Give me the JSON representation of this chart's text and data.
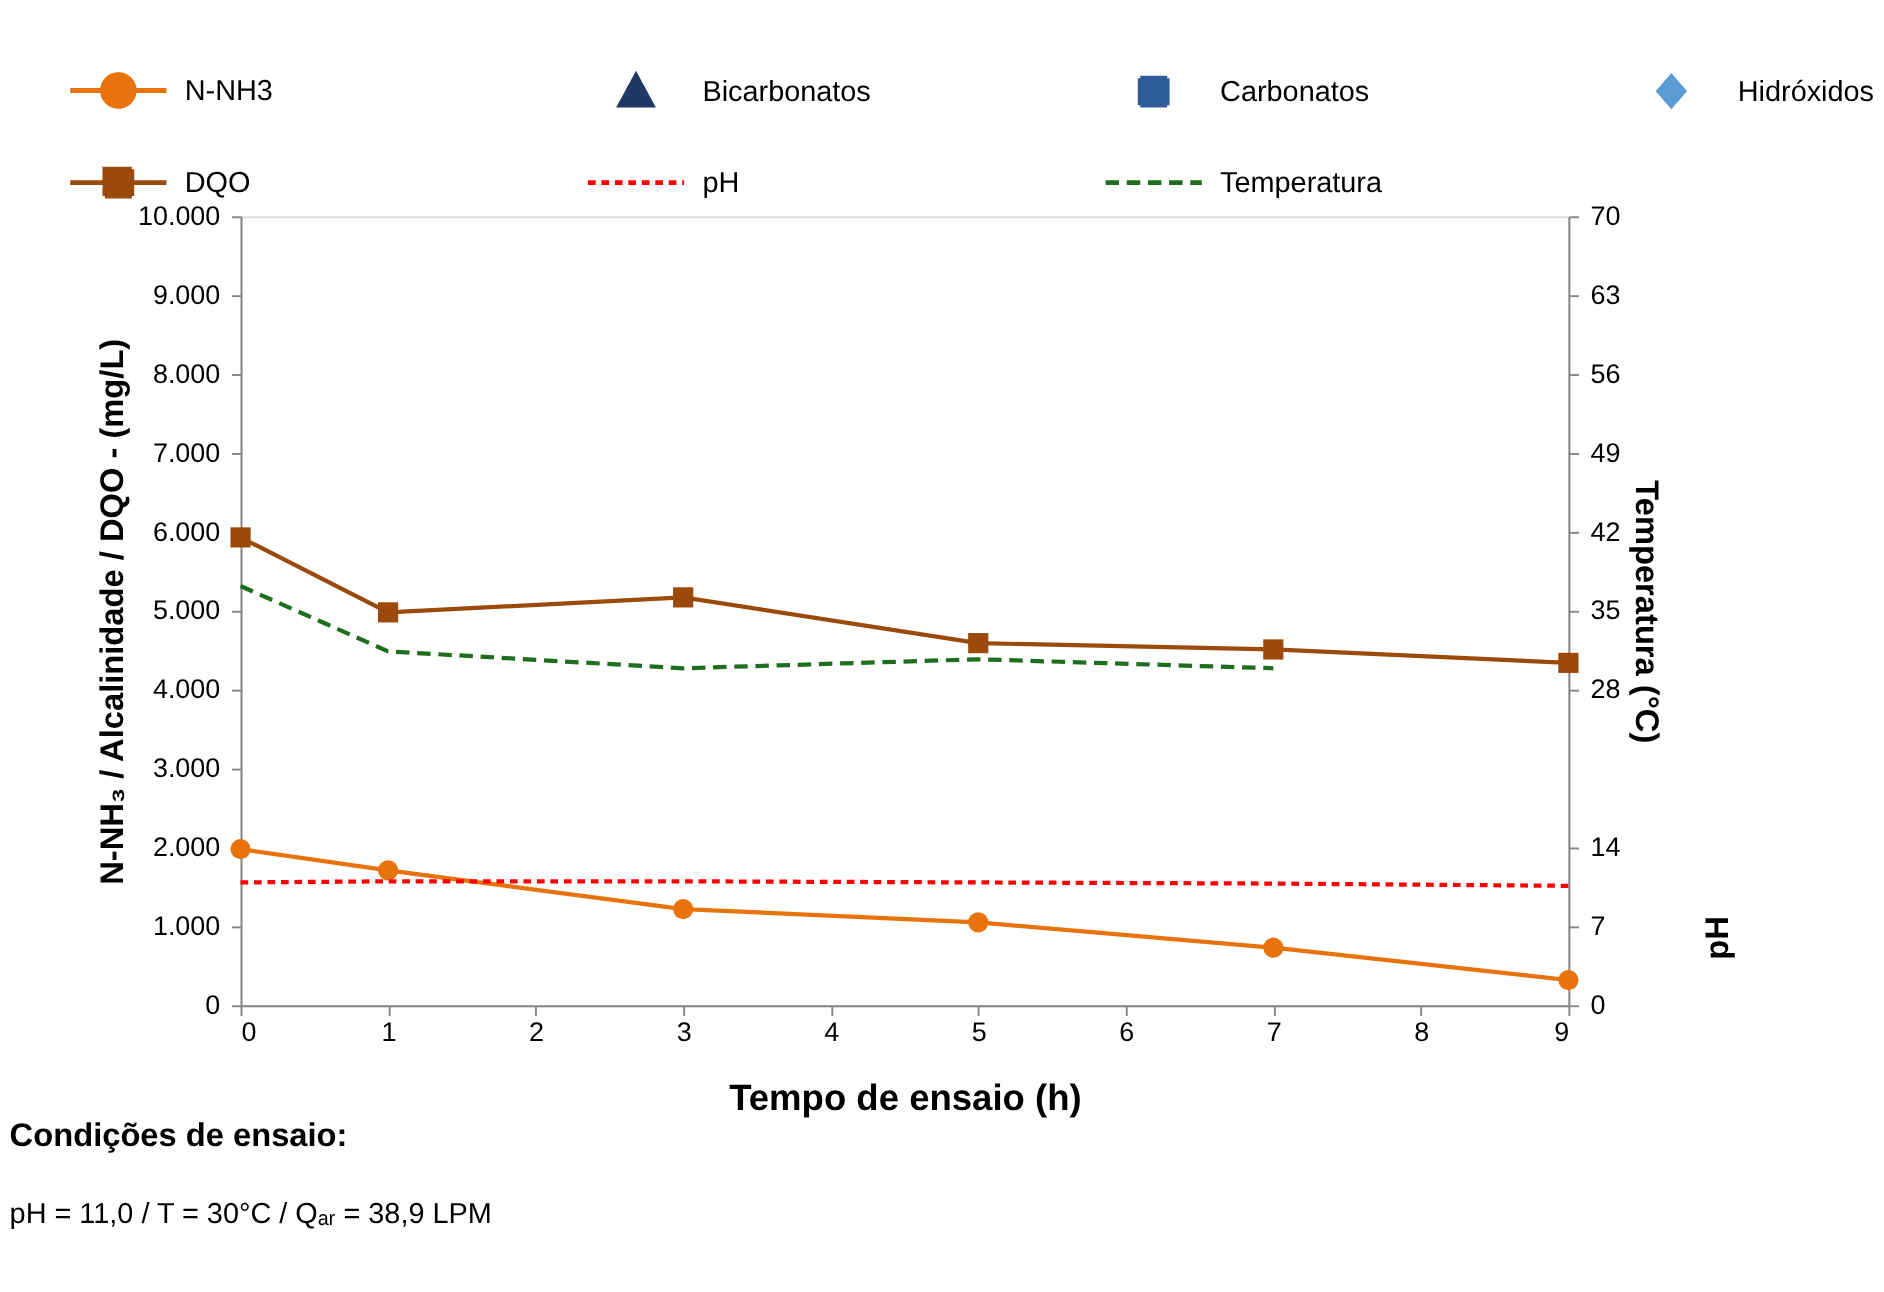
{
  "chart_data": {
    "type": "line",
    "xlabel": "Tempo de ensaio (h)",
    "ylabel": "N-NH₃ / Alcalinidade / DQO - (mg/L)",
    "y2label": "Temperatura (°C)",
    "x": [
      0,
      1,
      3,
      5,
      7,
      9
    ],
    "xlim": [
      0,
      9
    ],
    "xticks": [
      0,
      1,
      2,
      3,
      4,
      5,
      6,
      7,
      8,
      9
    ],
    "ylim": [
      0,
      10000
    ],
    "yticks": [
      0,
      {
        "value": 1000,
        "label": "1.000"
      },
      {
        "value": 2000,
        "label": "2.000"
      },
      {
        "value": 3000,
        "label": "3.000"
      },
      {
        "value": 4000,
        "label": "4.000"
      },
      {
        "value": 5000,
        "label": "5.000"
      },
      {
        "value": 6000,
        "label": "6.000"
      },
      {
        "value": 7000,
        "label": "7.000"
      },
      {
        "value": 8000,
        "label": "8.000"
      },
      {
        "value": 9000,
        "label": "9.000"
      },
      {
        "value": 10000,
        "label": "10.000"
      }
    ],
    "y2lim": [
      0,
      70
    ],
    "y2ticks": [
      0,
      7,
      14,
      28,
      35,
      42,
      49,
      56,
      63,
      70
    ],
    "legend": "top",
    "series": [
      {
        "name": "N-NH3",
        "color": "#e8730c",
        "marker": "circle",
        "line_style": "solid",
        "values": [
          1980,
          1710,
          1220,
          1050,
          730,
          320
        ]
      },
      {
        "name": "Bicarbonatos",
        "type": "scatter",
        "color": "#1f3864",
        "marker": "triangle",
        "values": [
          null,
          null,
          null,
          null,
          null,
          null
        ]
      },
      {
        "name": "Carbonatos",
        "type": "scatter",
        "color": "#2e5c9a",
        "marker": "square",
        "values": [
          null,
          null,
          null,
          null,
          null,
          null
        ]
      },
      {
        "name": "Hidróxidos",
        "type": "scatter",
        "color": "#5b9bd5",
        "marker": "diamond",
        "values": [
          null,
          null,
          null,
          null,
          null,
          null
        ]
      },
      {
        "name": "DQO",
        "color": "#9c4a0c",
        "marker": "square",
        "line_style": "solid",
        "values": [
          5930,
          4980,
          5170,
          4590,
          4510,
          4340
        ]
      },
      {
        "name": "pH",
        "color": "#ff0000",
        "marker": "none",
        "line_style": "dotted",
        "axis": "y2",
        "values": [
          10.9,
          11.0,
          11.0,
          10.9,
          10.8,
          10.6
        ]
      },
      {
        "name": "Temperatura",
        "color": "#1e6e1e",
        "marker": "none",
        "line_style": "dashed",
        "axis": "y2",
        "values": [
          37.2,
          31.4,
          29.9,
          30.7,
          29.9,
          null
        ]
      }
    ],
    "annotations": [
      "Condições de ensaio:",
      "pH = 11,0 / T = 30°C / Qₐᵣ = 38,9 LPM",
      "pH"
    ]
  }
}
